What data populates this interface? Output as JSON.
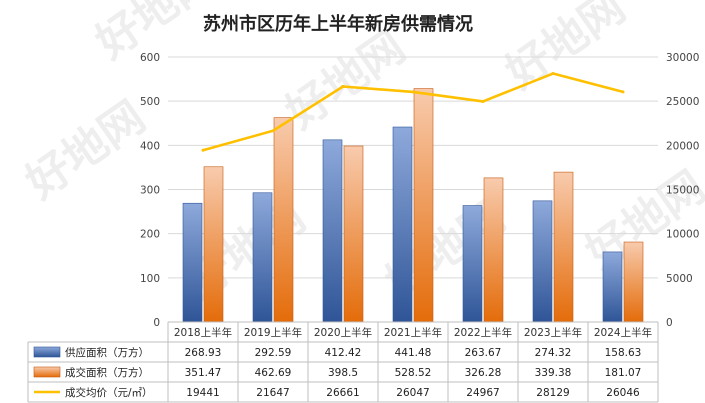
{
  "chart_data": {
    "type": "bar",
    "title": "苏州市区历年上半年新房供需情况",
    "categories": [
      "2018上半年",
      "2019上半年",
      "2020上半年",
      "2021上半年",
      "2022上半年",
      "2023上半年",
      "2024上半年"
    ],
    "series": [
      {
        "name": "供应面积（万方）",
        "type": "bar",
        "axis": "left",
        "color": "#4472C4",
        "values": [
          "268.93",
          "292.59",
          "412.42",
          "441.48",
          "263.67",
          "274.32",
          "158.63"
        ]
      },
      {
        "name": "成交面积（万方）",
        "type": "bar",
        "axis": "left",
        "color": "#ED7D31",
        "values": [
          "351.47",
          "462.69",
          "398.5",
          "528.52",
          "326.28",
          "339.38",
          "181.07"
        ]
      },
      {
        "name": "成交均价（元/㎡）",
        "type": "line",
        "axis": "right",
        "color": "#FFC000",
        "values": [
          "19441",
          "21647",
          "26661",
          "26047",
          "24967",
          "28129",
          "26046"
        ]
      }
    ],
    "y_left": {
      "min": 0,
      "max": 600,
      "ticks": [
        "0",
        "100",
        "200",
        "300",
        "400",
        "500",
        "600"
      ]
    },
    "y_right": {
      "min": 0,
      "max": 30000,
      "ticks": [
        "0",
        "5000",
        "10000",
        "15000",
        "20000",
        "25000",
        "30000"
      ]
    },
    "grid": true,
    "legend": "data-table"
  },
  "watermark": "好地网"
}
